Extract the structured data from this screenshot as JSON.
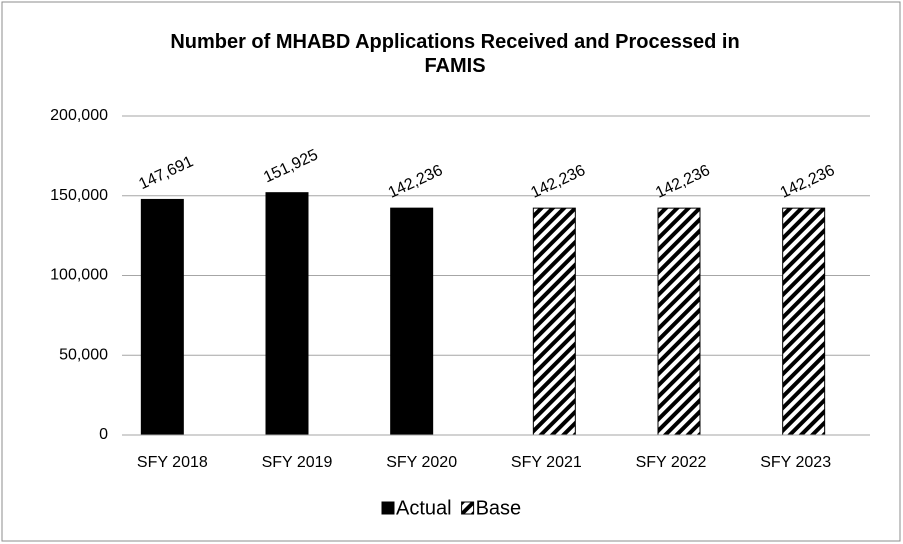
{
  "chart_data": {
    "type": "bar",
    "title": "Number of MHABD Applications Received and Processed in FAMIS",
    "categories": [
      "SFY 2018",
      "SFY 2019",
      "SFY 2020",
      "SFY 2021",
      "SFY 2022",
      "SFY 2023"
    ],
    "series": [
      {
        "name": "Actual",
        "color": "#000000",
        "hatch": false,
        "values": [
          147691,
          151925,
          142236,
          null,
          null,
          null
        ],
        "value_labels": [
          "147,691",
          "151,925",
          "142,236",
          null,
          null,
          null
        ]
      },
      {
        "name": "Base",
        "color": "#000000",
        "hatch": true,
        "values": [
          null,
          null,
          null,
          142236,
          142236,
          142236
        ],
        "value_labels": [
          null,
          null,
          null,
          "142,236",
          "142,236",
          "142,236"
        ]
      }
    ],
    "ylim": [
      0,
      200000
    ],
    "yticks": [
      0,
      {
        "value": 50000,
        "label": "50,000"
      },
      {
        "value": 100000,
        "label": "100,000"
      },
      {
        "value": 150000,
        "label": "150,000"
      },
      {
        "value": 200000,
        "label": "200,000"
      }
    ],
    "grid": true,
    "legend": "bottom"
  }
}
